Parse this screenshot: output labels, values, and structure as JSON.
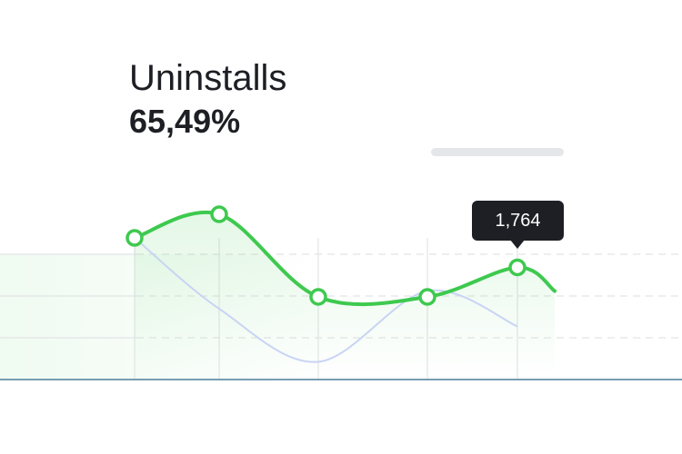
{
  "header": {
    "title": "Uninstalls",
    "value": "65,49%"
  },
  "tooltip": {
    "label": "1,764"
  },
  "colors": {
    "primary_line": "#3ec94f",
    "secondary_line": "#c9d4f4",
    "axis": "#4a7f99",
    "grid": "#e2e4e6"
  },
  "chart_data": {
    "type": "line",
    "title": "Uninstalls",
    "grid": true,
    "series": [
      {
        "values": [
          2.4,
          2.8,
          1.4,
          1.4,
          1.9,
          1.5
        ],
        "markers": [
          true,
          true,
          true,
          true,
          true,
          false
        ]
      },
      {
        "values": [
          2.4,
          1.2,
          0.3,
          1.5,
          0.9
        ]
      }
    ]
  }
}
